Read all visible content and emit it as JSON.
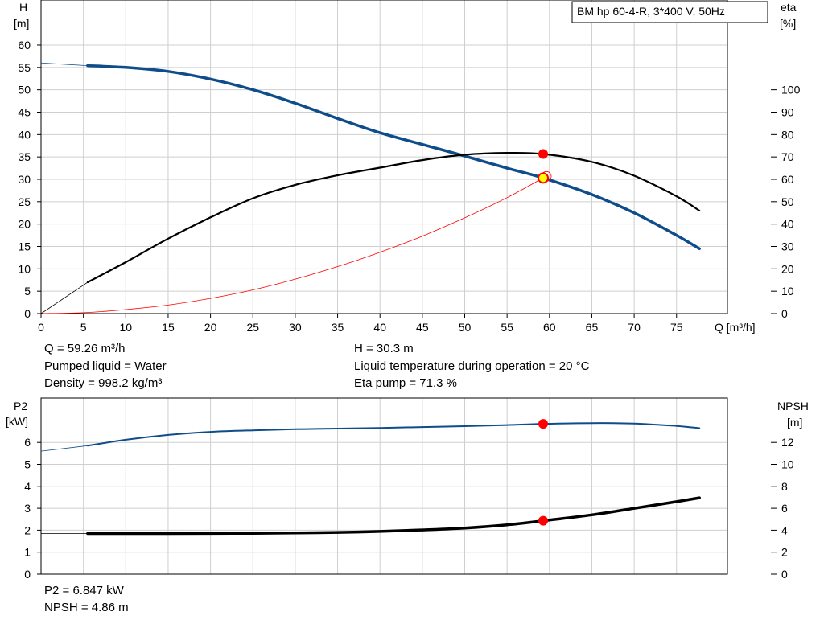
{
  "chart_data": [
    {
      "type": "line",
      "title_box": "BM hp 60-4-R, 3*400 V, 50Hz",
      "xlabel": "Q [m³/h]",
      "ylabel_left": "H",
      "ylabel_left_unit": "[m]",
      "ylabel_right": "eta",
      "ylabel_right_unit": "[%]",
      "xlim": [
        0,
        80
      ],
      "ylim_left": [
        0,
        60
      ],
      "ylim_right": [
        0,
        120
      ],
      "x_ticks": [
        0,
        5,
        10,
        15,
        20,
        25,
        30,
        35,
        40,
        45,
        50,
        55,
        60,
        65,
        70,
        75
      ],
      "y_left_ticks": [
        0,
        5,
        10,
        15,
        20,
        25,
        30,
        35,
        40,
        45,
        50,
        55,
        60
      ],
      "y_right_ticks": [
        0,
        10,
        20,
        30,
        40,
        50,
        60,
        70,
        80,
        90,
        100
      ],
      "grid": true,
      "series": [
        {
          "name": "H",
          "axis": "left",
          "color": "#0f4c8a",
          "x": [
            5.5,
            10,
            15,
            20,
            25,
            30,
            35,
            40,
            45,
            50,
            55,
            59.26,
            65,
            70,
            75,
            77.7
          ],
          "y": [
            55.4,
            55.0,
            54.1,
            52.4,
            50.0,
            47.0,
            43.6,
            40.4,
            37.8,
            35.2,
            32.5,
            30.3,
            26.6,
            22.5,
            17.5,
            14.5
          ]
        },
        {
          "name": "eta",
          "axis": "right",
          "color": "#000000",
          "x": [
            5.5,
            10,
            15,
            20,
            25,
            30,
            35,
            40,
            45,
            50,
            55,
            59.26,
            65,
            70,
            75,
            77.7
          ],
          "y": [
            14,
            23,
            33.5,
            43,
            51.5,
            57.5,
            61.8,
            65.2,
            68.6,
            71.0,
            71.8,
            71.3,
            67.8,
            61.6,
            52.4,
            46
          ]
        },
        {
          "name": "system",
          "axis": "left",
          "color": "#ff0000",
          "x": [
            0,
            5,
            10,
            15,
            20,
            25,
            30,
            35,
            40,
            45,
            50,
            55,
            59.26
          ],
          "y": [
            0,
            0.2,
            0.9,
            1.9,
            3.4,
            5.3,
            7.7,
            10.5,
            13.7,
            17.3,
            21.4,
            25.9,
            30.3
          ]
        }
      ],
      "extrapolation": {
        "H": {
          "x": [
            0,
            5.5
          ],
          "y": [
            56.0,
            55.4
          ]
        },
        "eta": {
          "x": [
            0,
            5.5
          ],
          "y": [
            0,
            14
          ]
        }
      },
      "operating_point": {
        "x": 59.26,
        "h": 30.3,
        "eta": 71.3
      }
    },
    {
      "type": "line",
      "xlim": [
        0,
        80
      ],
      "ylabel_left": "P2",
      "ylabel_left_unit": "[kW]",
      "ylabel_right": "NPSH",
      "ylabel_right_unit": "[m]",
      "ylim_left": [
        0,
        7
      ],
      "ylim_right": [
        0,
        14
      ],
      "y_left_ticks": [
        0,
        1,
        2,
        3,
        4,
        5,
        6
      ],
      "y_right_ticks": [
        0,
        2,
        4,
        6,
        8,
        10,
        12
      ],
      "grid": true,
      "series": [
        {
          "name": "P2",
          "axis": "left",
          "color": "#0f4c8a",
          "x": [
            5.5,
            10,
            15,
            20,
            25,
            30,
            35,
            40,
            45,
            50,
            55,
            59.26,
            65,
            70,
            75,
            77.7
          ],
          "y": [
            5.85,
            6.12,
            6.34,
            6.48,
            6.55,
            6.6,
            6.63,
            6.66,
            6.7,
            6.74,
            6.79,
            6.847,
            6.88,
            6.86,
            6.75,
            6.65
          ]
        },
        {
          "name": "NPSH",
          "axis": "right",
          "color": "#000000",
          "x": [
            5.5,
            10,
            15,
            20,
            25,
            30,
            35,
            40,
            45,
            50,
            55,
            59.26,
            65,
            70,
            75,
            77.7
          ],
          "y": [
            3.7,
            3.7,
            3.7,
            3.71,
            3.72,
            3.75,
            3.8,
            3.89,
            4.02,
            4.2,
            4.49,
            4.86,
            5.4,
            5.99,
            6.6,
            6.95
          ]
        }
      ],
      "extrapolation": {
        "P2": {
          "x": [
            0,
            5.5
          ],
          "y": [
            5.6,
            5.85
          ]
        },
        "NPSH": {
          "x": [
            0,
            5.5
          ],
          "y": [
            3.7,
            3.7
          ]
        }
      },
      "operating_point": {
        "x": 59.26,
        "p2": 6.847,
        "npsh": 4.86
      }
    }
  ],
  "info_top": {
    "q": "Q = 59.26 m³/h",
    "liquid": "Pumped liquid = Water",
    "density": "Density = 998.2 kg/m³",
    "h": "H = 30.3 m",
    "temp": "Liquid temperature during operation = 20 °C",
    "eta": "Eta pump = 71.3 %"
  },
  "info_bottom": {
    "p2": "P2 = 6.847 kW",
    "npsh": "NPSH = 4.86 m"
  }
}
